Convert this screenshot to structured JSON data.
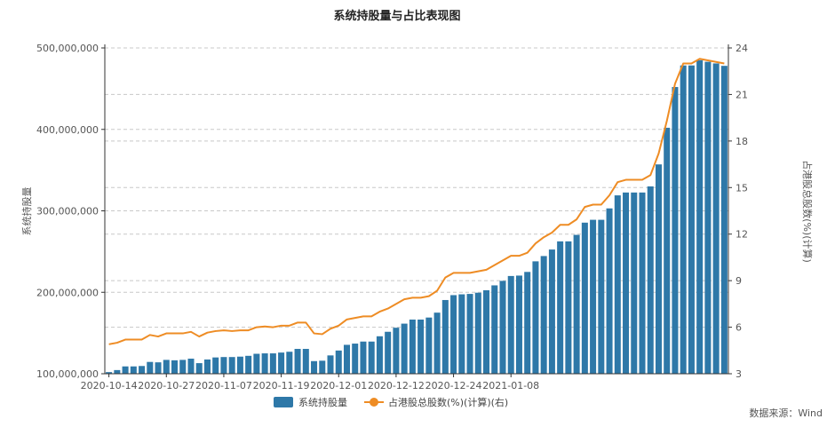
{
  "chart_data": {
    "type": "bar",
    "title": "系统持股量与占比表现图",
    "source": "数据来源：Wind",
    "left_axis": {
      "label": "系统持股量",
      "range": [
        100000000,
        500000000
      ],
      "ticks": [
        "100,000,000",
        "200,000,000",
        "300,000,000",
        "400,000,000",
        "500,000,000"
      ]
    },
    "right_axis": {
      "label": "占港股总股数(%)(计算)",
      "range": [
        3,
        24
      ],
      "ticks": [
        "3",
        "6",
        "9",
        "12",
        "15",
        "18",
        "21",
        "24"
      ]
    },
    "x_tick_labels": [
      "2020-10-14",
      "2020-10-27",
      "2020-11-07",
      "2020-11-19",
      "2020-12-01",
      "2020-12-12",
      "2020-12-24",
      "2021-01-08"
    ],
    "x_tick_indices": [
      0,
      7,
      14,
      21,
      28,
      35,
      42,
      49
    ],
    "grid": true,
    "legend_position": "bottom",
    "series": [
      {
        "name": "系统持股量",
        "type": "bar",
        "axis": "left",
        "color": "#2e78a8",
        "values": [
          102000000,
          104500000,
          109000000,
          109000000,
          109500000,
          114500000,
          114000000,
          117000000,
          116500000,
          117000000,
          118500000,
          113000000,
          117500000,
          120000000,
          120500000,
          120500000,
          121000000,
          122000000,
          124500000,
          125000000,
          125000000,
          126000000,
          127000000,
          130500000,
          130500000,
          115500000,
          116000000,
          122500000,
          128500000,
          135500000,
          137000000,
          139500000,
          139500000,
          146000000,
          151500000,
          156500000,
          161500000,
          166500000,
          166500000,
          169000000,
          175000000,
          190500000,
          196500000,
          197500000,
          198000000,
          199500000,
          202500000,
          208500000,
          214000000,
          220000000,
          220500000,
          225000000,
          238000000,
          244500000,
          252500000,
          262500000,
          262500000,
          270500000,
          285500000,
          289000000,
          289000000,
          303000000,
          319000000,
          322500000,
          322500000,
          322500000,
          330000000,
          357000000,
          402000000,
          452000000,
          478500000,
          478500000,
          485000000,
          483000000,
          481000000,
          478000000
        ]
      },
      {
        "name": "占港股总股数(%)(计算)(右)",
        "type": "line",
        "axis": "right",
        "color": "#ee8c24",
        "values": [
          4.9,
          5.0,
          5.2,
          5.2,
          5.2,
          5.5,
          5.4,
          5.6,
          5.6,
          5.6,
          5.7,
          5.4,
          5.65,
          5.75,
          5.8,
          5.75,
          5.8,
          5.8,
          6.0,
          6.05,
          6.0,
          6.1,
          6.1,
          6.3,
          6.3,
          5.6,
          5.55,
          5.9,
          6.1,
          6.5,
          6.6,
          6.7,
          6.7,
          7.0,
          7.2,
          7.5,
          7.8,
          7.9,
          7.9,
          8.0,
          8.35,
          9.2,
          9.5,
          9.5,
          9.5,
          9.6,
          9.7,
          10.0,
          10.3,
          10.6,
          10.6,
          10.8,
          11.4,
          11.8,
          12.1,
          12.6,
          12.6,
          12.95,
          13.75,
          13.9,
          13.9,
          14.5,
          15.35,
          15.5,
          15.5,
          15.5,
          15.8,
          17.2,
          19.3,
          21.7,
          23.0,
          23.0,
          23.3,
          23.2,
          23.1,
          23.0
        ]
      }
    ]
  }
}
